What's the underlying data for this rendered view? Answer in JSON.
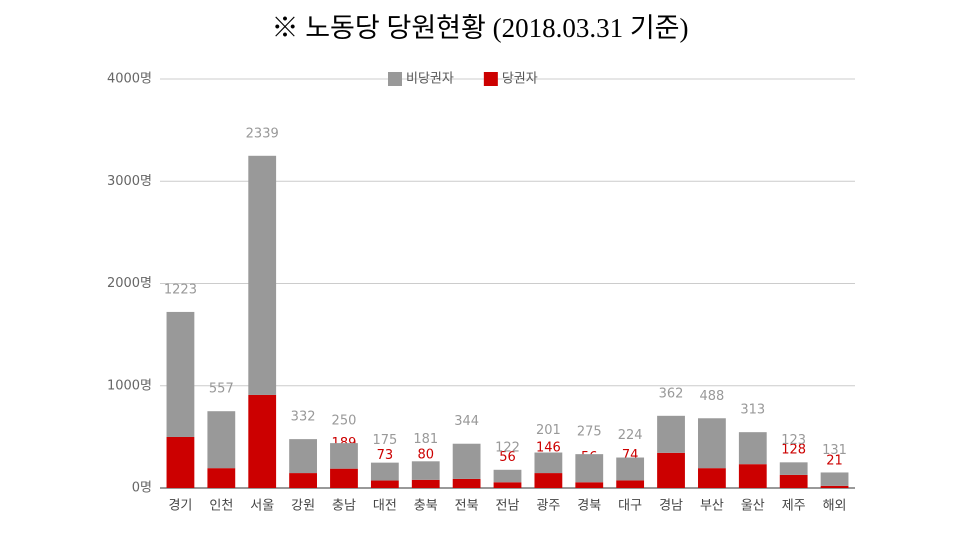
{
  "chart_data": {
    "type": "stacked-bar",
    "title": "※ 노동당 당원현황 (2018.03.31 기준)",
    "categories": [
      "경기",
      "인천",
      "서울",
      "강원",
      "충남",
      "대전",
      "충북",
      "전북",
      "전남",
      "광주",
      "경북",
      "대구",
      "경남",
      "부산",
      "울산",
      "제주",
      "해외"
    ],
    "series": [
      {
        "name": "비당권자",
        "color": "#999999",
        "values": [
          1223,
          557,
          2339,
          332,
          250,
          175,
          181,
          344,
          122,
          201,
          275,
          224,
          362,
          488,
          313,
          123,
          131
        ]
      },
      {
        "name": "당권자",
        "color": "#cc0000",
        "values": [
          499,
          194,
          910,
          146,
          189,
          73,
          80,
          89,
          56,
          146,
          56,
          74,
          344,
          194,
          233,
          128,
          21
        ]
      }
    ],
    "ylim": [
      0,
      4000
    ],
    "yticks": [
      {
        "value": 0,
        "label": "0명"
      },
      {
        "value": 1000,
        "label": "1000명"
      },
      {
        "value": 2000,
        "label": "2000명"
      },
      {
        "value": 3000,
        "label": "3000명"
      },
      {
        "value": 4000,
        "label": "4000명"
      }
    ],
    "grid": true,
    "legend": "top"
  }
}
